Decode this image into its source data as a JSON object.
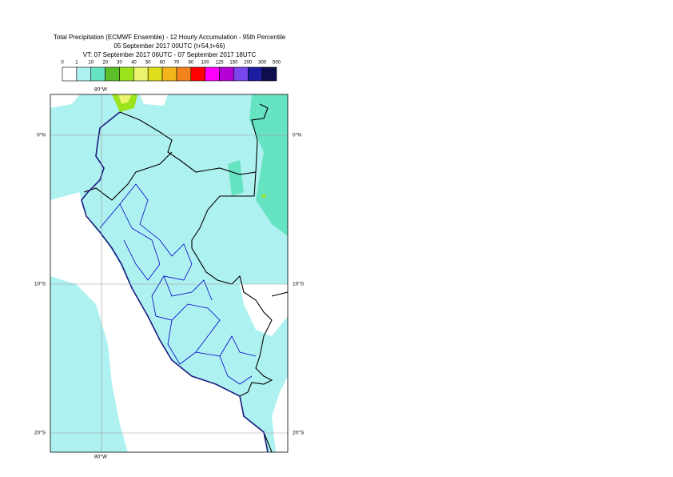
{
  "title": {
    "lines": [
      "Total Precipitation (ECMWF Ensemble) - 12 Hourly Accumulation - 95th Percentile",
      "05 September 2017 00UTC (t+54,t+66)",
      "VT: 07 September 2017 06UTC - 07 September 2017 18UTC"
    ]
  },
  "legend": {
    "labels": [
      0,
      1,
      10,
      20,
      30,
      40,
      50,
      60,
      70,
      80,
      100,
      125,
      150,
      200,
      300,
      500
    ],
    "colors": [
      "#ffffff",
      "#aef1f1",
      "#66e3c0",
      "#5cbf2a",
      "#9be31c",
      "#eaf46c",
      "#dede1c",
      "#f2b51c",
      "#f2821c",
      "#ff0000",
      "#ff00ff",
      "#b400d4",
      "#7a46ee",
      "#1c1c9e",
      "#0e0e4e"
    ]
  },
  "map": {
    "lon_labels": [
      "80°W"
    ],
    "lat_labels": [
      "0°N",
      "10°S",
      "20°S"
    ]
  }
}
